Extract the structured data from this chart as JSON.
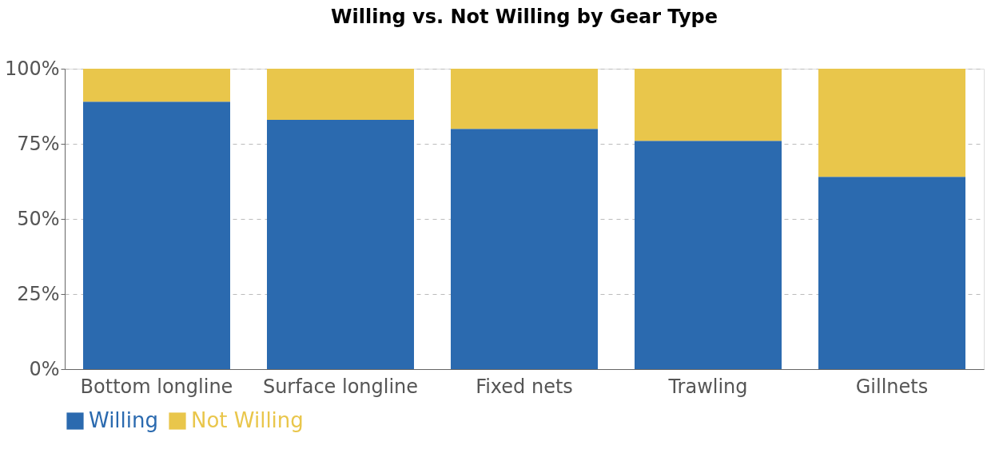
{
  "chart_data": {
    "type": "bar",
    "title": "Willing vs. Not Willing by Gear Type",
    "categories": [
      "Bottom longline",
      "Surface longline",
      "Fixed nets",
      "Trawling",
      "Gillnets"
    ],
    "series": [
      {
        "name": "Willing",
        "color": "#2b6aaf",
        "values": [
          89,
          83,
          80,
          76,
          64
        ]
      },
      {
        "name": "Not Willing",
        "color": "#e9c64b",
        "values": [
          11,
          17,
          20,
          24,
          36
        ]
      }
    ],
    "stacked": true,
    "ylim": [
      0,
      100
    ],
    "yticks": [
      {
        "value": 0,
        "label": "0%"
      },
      {
        "value": 25,
        "label": "25%"
      },
      {
        "value": 50,
        "label": "50%"
      },
      {
        "value": 75,
        "label": "75%"
      },
      {
        "value": 100,
        "label": "100%"
      }
    ],
    "grid": "y",
    "legend": "bottom"
  }
}
